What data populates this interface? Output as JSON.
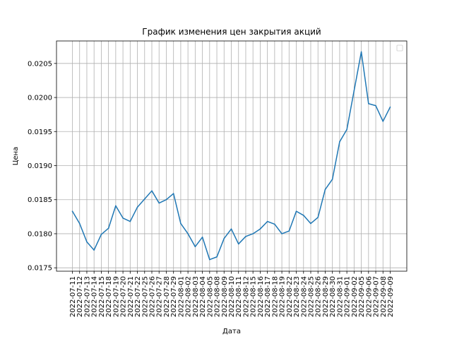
{
  "chart_data": {
    "type": "line",
    "title": "График изменения цен закрытия акций",
    "xlabel": "Дата",
    "ylabel": "Цена",
    "ylim": [
      0.01745,
      0.02083
    ],
    "grid": true,
    "legend": "top-right",
    "y_ticks": [
      "0.0175",
      "0.0180",
      "0.0185",
      "0.0190",
      "0.0195",
      "0.0200",
      "0.0205"
    ],
    "colors": {
      "line": "#1f77b4",
      "grid": "#b0b0b0"
    },
    "categories": [
      "2022-07-11",
      "2022-07-12",
      "2022-07-13",
      "2022-07-14",
      "2022-07-15",
      "2022-07-18",
      "2022-07-19",
      "2022-07-20",
      "2022-07-21",
      "2022-07-22",
      "2022-07-25",
      "2022-07-26",
      "2022-07-27",
      "2022-07-28",
      "2022-07-29",
      "2022-08-01",
      "2022-08-02",
      "2022-08-03",
      "2022-08-04",
      "2022-08-05",
      "2022-08-08",
      "2022-08-09",
      "2022-08-10",
      "2022-08-11",
      "2022-08-12",
      "2022-08-15",
      "2022-08-16",
      "2022-08-17",
      "2022-08-18",
      "2022-08-19",
      "2022-08-22",
      "2022-08-23",
      "2022-08-24",
      "2022-08-25",
      "2022-08-26",
      "2022-08-29",
      "2022-08-30",
      "2022-08-31",
      "2022-09-01",
      "2022-09-02",
      "2022-09-05",
      "2022-09-06",
      "2022-09-07",
      "2022-09-08",
      "2022-09-09"
    ],
    "series": [
      {
        "values": [
          0.01833,
          0.01815,
          0.01788,
          0.01776,
          0.01799,
          0.01808,
          0.01841,
          0.01823,
          0.01818,
          0.01839,
          0.01851,
          0.01863,
          0.01845,
          0.0185,
          0.01859,
          0.01815,
          0.018,
          0.01781,
          0.01795,
          0.01762,
          0.01766,
          0.01793,
          0.01807,
          0.01785,
          0.01796,
          0.018,
          0.01807,
          0.01818,
          0.01814,
          0.018,
          0.01804,
          0.01833,
          0.01827,
          0.01815,
          0.01824,
          0.01865,
          0.0188,
          0.01935,
          0.01953,
          0.0201,
          0.02067,
          0.01991,
          0.01988,
          0.01965,
          0.01986
        ]
      }
    ]
  }
}
